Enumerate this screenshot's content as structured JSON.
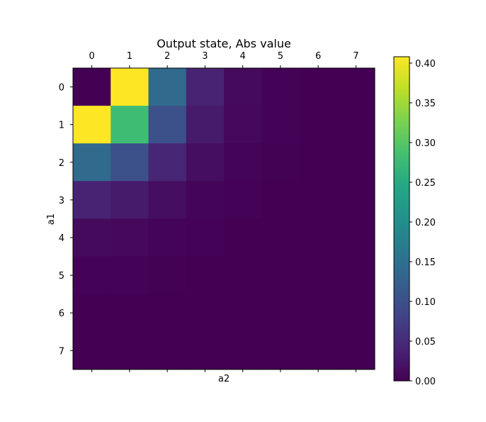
{
  "chart_data": {
    "type": "heatmap",
    "title": "Output state, Abs value",
    "xlabel": "a2",
    "ylabel": "a1",
    "x_ticks": [
      "0",
      "1",
      "2",
      "3",
      "4",
      "5",
      "6",
      "7"
    ],
    "y_ticks": [
      "0",
      "1",
      "2",
      "3",
      "4",
      "5",
      "6",
      "7"
    ],
    "colormap": "viridis",
    "color_range": [
      0,
      0.408
    ],
    "colorbar_ticks": [
      "0.00",
      "0.05",
      "0.10",
      "0.15",
      "0.20",
      "0.25",
      "0.30",
      "0.35",
      "0.40"
    ],
    "x_axis_position": "top",
    "grid": false,
    "values": [
      [
        0.0,
        0.408,
        0.14,
        0.04,
        0.01,
        0.002,
        0.0,
        0.0
      ],
      [
        0.408,
        0.28,
        0.099,
        0.03,
        0.008,
        0.002,
        0.0,
        0.0
      ],
      [
        0.14,
        0.099,
        0.043,
        0.015,
        0.004,
        0.001,
        0.0,
        0.0
      ],
      [
        0.04,
        0.03,
        0.015,
        0.005,
        0.002,
        0.0,
        0.0,
        0.0
      ],
      [
        0.01,
        0.008,
        0.004,
        0.002,
        0.0,
        0.0,
        0.0,
        0.0
      ],
      [
        0.002,
        0.002,
        0.001,
        0.0,
        0.0,
        0.0,
        0.0,
        0.0
      ],
      [
        0.0,
        0.0,
        0.0,
        0.0,
        0.0,
        0.0,
        0.0,
        0.0
      ],
      [
        0.0,
        0.0,
        0.0,
        0.0,
        0.0,
        0.0,
        0.0,
        0.0
      ]
    ]
  }
}
